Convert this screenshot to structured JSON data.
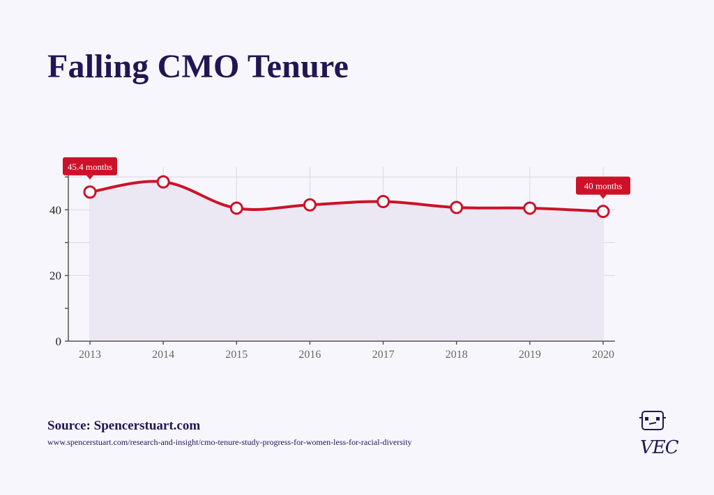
{
  "title": "Falling CMO Tenure",
  "source": "Source: Spencerstuart.com",
  "url": "www.spencerstuart.com/research-and-insight/cmo-tenure-study-progress-for-women-less-for-racial-diversity",
  "logo_text": "VEC",
  "colors": {
    "line": "#cc1228",
    "area": "#ebe8f4",
    "title": "#221554",
    "grid": "#d9d7e0",
    "axis": "#555555"
  },
  "chart_data": {
    "type": "area",
    "x": [
      "2013",
      "2014",
      "2015",
      "2016",
      "2017",
      "2018",
      "2019",
      "2020"
    ],
    "values": [
      45.4,
      48.5,
      40.5,
      41.5,
      42.5,
      40.7,
      40.5,
      39.5
    ],
    "yticks": [
      "0",
      "20",
      "40"
    ],
    "ylim": [
      0,
      53
    ],
    "grid": true,
    "annotations": [
      {
        "index": 0,
        "label": "45.4 months"
      },
      {
        "index": 7,
        "label": "40 months"
      }
    ]
  }
}
